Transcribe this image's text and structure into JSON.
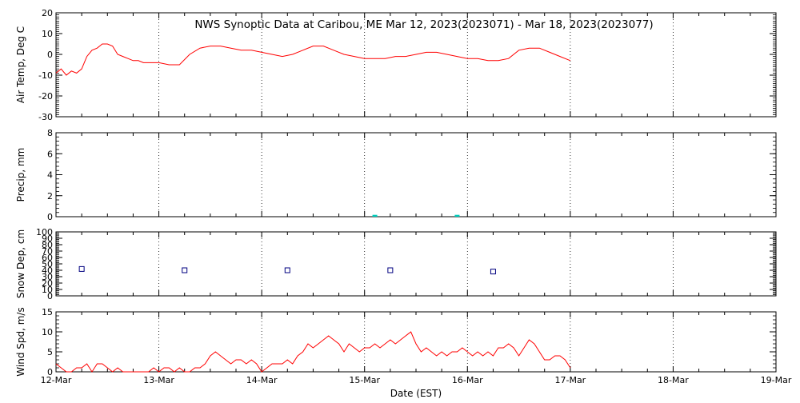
{
  "title": "NWS Synoptic Data at Caribou, ME   Mar 12, 2023(2023071) - Mar 18, 2023(2023077)",
  "xlabel": "Date (EST)",
  "x_ticks": [
    "12-Mar",
    "13-Mar",
    "14-Mar",
    "15-Mar",
    "16-Mar",
    "17-Mar",
    "18-Mar",
    "19-Mar"
  ],
  "colors": {
    "temp": "#ff0000",
    "wind": "#ff0000",
    "precip": "#00ccbb",
    "snow": "#000080"
  },
  "chart_data": [
    {
      "type": "line",
      "ylabel": "Air Temp, Deg C",
      "ylim": [
        -30,
        20
      ],
      "yticks": [
        -30,
        -20,
        -10,
        0,
        10,
        20
      ],
      "x_unit": "days since 12-Mar 00:00 EST",
      "series": [
        {
          "x": [
            0.0,
            0.05,
            0.1,
            0.15,
            0.2,
            0.25,
            0.3,
            0.35,
            0.4,
            0.45,
            0.5,
            0.55,
            0.6,
            0.65,
            0.7,
            0.75,
            0.8,
            0.85,
            0.9,
            1.0,
            1.1,
            1.2,
            1.3,
            1.4,
            1.5,
            1.6,
            1.7,
            1.8,
            1.9,
            2.0,
            2.1,
            2.2,
            2.3,
            2.4,
            2.5,
            2.6,
            2.7,
            2.8,
            2.9,
            3.0,
            3.1,
            3.2,
            3.3,
            3.4,
            3.5,
            3.6,
            3.7,
            3.8,
            3.9,
            4.0,
            4.1,
            4.2,
            4.3,
            4.4,
            4.5,
            4.6,
            4.7,
            4.8,
            4.9,
            5.0
          ],
          "y": [
            -9,
            -7,
            -10,
            -8,
            -9,
            -7,
            -1,
            2,
            3,
            5,
            5,
            4,
            0,
            -1,
            -2,
            -3,
            -3,
            -4,
            -4,
            -4,
            -5,
            -5,
            0,
            3,
            4,
            4,
            3,
            2,
            2,
            1,
            0,
            -1,
            0,
            2,
            4,
            4,
            2,
            0,
            -1,
            -2,
            -2,
            -2,
            -1,
            -1,
            0,
            1,
            1,
            0,
            -1,
            -2,
            -2,
            -3,
            -3,
            -2,
            2,
            3,
            3,
            1,
            -1,
            -3
          ]
        }
      ]
    },
    {
      "type": "bar",
      "ylabel": "Precip, mm",
      "ylim": [
        0,
        8
      ],
      "yticks": [
        0,
        2,
        4,
        6,
        8
      ],
      "x_unit": "days since 12-Mar 00:00 EST",
      "series": [
        {
          "x": [
            3.1,
            3.9
          ],
          "y": [
            0.1,
            0.1
          ]
        }
      ]
    },
    {
      "type": "scatter",
      "ylabel": "Snow Dep, cm",
      "ylim": [
        0,
        100
      ],
      "yticks": [
        0,
        10,
        20,
        30,
        40,
        50,
        60,
        70,
        80,
        90,
        100
      ],
      "x_unit": "days since 12-Mar 00:00 EST",
      "series": [
        {
          "x": [
            0.25,
            1.25,
            2.25,
            3.25,
            4.25
          ],
          "y": [
            42,
            40,
            40,
            40,
            38
          ]
        }
      ]
    },
    {
      "type": "line",
      "ylabel": "Wind Spd, m/s",
      "ylim": [
        0,
        15
      ],
      "yticks": [
        0,
        5,
        10,
        15
      ],
      "x_unit": "days since 12-Mar 00:00 EST",
      "series": [
        {
          "x": [
            0.0,
            0.05,
            0.1,
            0.15,
            0.2,
            0.25,
            0.3,
            0.35,
            0.4,
            0.45,
            0.5,
            0.55,
            0.6,
            0.65,
            0.7,
            0.75,
            0.8,
            0.85,
            0.9,
            0.95,
            1.0,
            1.05,
            1.1,
            1.15,
            1.2,
            1.25,
            1.3,
            1.35,
            1.4,
            1.45,
            1.5,
            1.55,
            1.6,
            1.65,
            1.7,
            1.75,
            1.8,
            1.85,
            1.9,
            1.95,
            2.0,
            2.05,
            2.1,
            2.15,
            2.2,
            2.25,
            2.3,
            2.35,
            2.4,
            2.45,
            2.5,
            2.55,
            2.6,
            2.65,
            2.7,
            2.75,
            2.8,
            2.85,
            2.9,
            2.95,
            3.0,
            3.05,
            3.1,
            3.15,
            3.2,
            3.25,
            3.3,
            3.35,
            3.4,
            3.45,
            3.5,
            3.55,
            3.6,
            3.65,
            3.7,
            3.75,
            3.8,
            3.85,
            3.9,
            3.95,
            4.0,
            4.05,
            4.1,
            4.15,
            4.2,
            4.25,
            4.3,
            4.35,
            4.4,
            4.45,
            4.5,
            4.55,
            4.6,
            4.65,
            4.7,
            4.75,
            4.8,
            4.85,
            4.9,
            4.95,
            5.0
          ],
          "y": [
            2,
            1,
            0,
            0,
            1,
            1,
            2,
            0,
            2,
            2,
            1,
            0,
            1,
            0,
            0,
            0,
            0,
            0,
            0,
            1,
            0,
            1,
            1,
            0,
            1,
            0,
            0,
            1,
            1,
            2,
            4,
            5,
            4,
            3,
            2,
            3,
            3,
            2,
            3,
            2,
            0,
            1,
            2,
            2,
            2,
            3,
            2,
            4,
            5,
            7,
            6,
            7,
            8,
            9,
            8,
            7,
            5,
            7,
            6,
            5,
            6,
            6,
            7,
            6,
            7,
            8,
            7,
            8,
            9,
            10,
            7,
            5,
            6,
            5,
            4,
            5,
            4,
            5,
            5,
            6,
            5,
            4,
            5,
            4,
            5,
            4,
            6,
            6,
            7,
            6,
            4,
            6,
            8,
            7,
            5,
            3,
            3,
            4,
            4,
            3,
            1
          ]
        }
      ]
    }
  ]
}
